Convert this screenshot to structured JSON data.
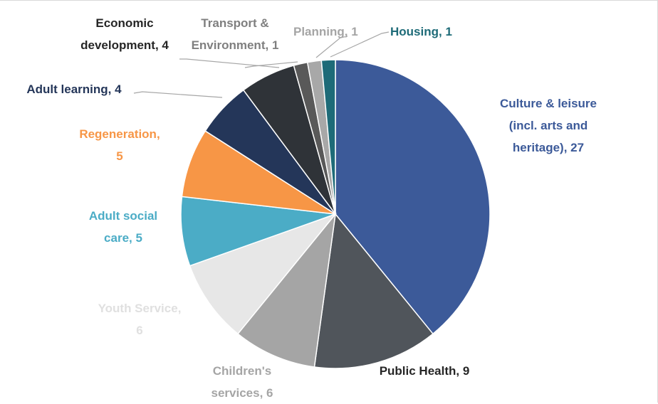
{
  "chart_data": {
    "type": "pie",
    "categories": [
      "Culture & leisure (incl. arts and heritage)",
      "Public Health",
      "Children's services",
      "Youth Service",
      "Adult social care",
      "Regeneration",
      "Adult learning",
      "Economic development",
      "Transport & Environment",
      "Planning",
      "Housing"
    ],
    "values": [
      27,
      9,
      6,
      6,
      5,
      5,
      4,
      4,
      1,
      1,
      1
    ],
    "colors": [
      "#3c5a99",
      "#50555b",
      "#a5a5a5",
      "#e7e7e7",
      "#4bacc6",
      "#f79646",
      "#243659",
      "#2f3338",
      "#595959",
      "#a8a8a8",
      "#1e6b78"
    ],
    "label_colors": [
      "#3c5a99",
      "#262626",
      "#a5a5a5",
      "#e0e0e0",
      "#4bacc6",
      "#f79646",
      "#243659",
      "#262626",
      "#7f7f7f",
      "#a5a5a5",
      "#1e6b78"
    ]
  }
}
